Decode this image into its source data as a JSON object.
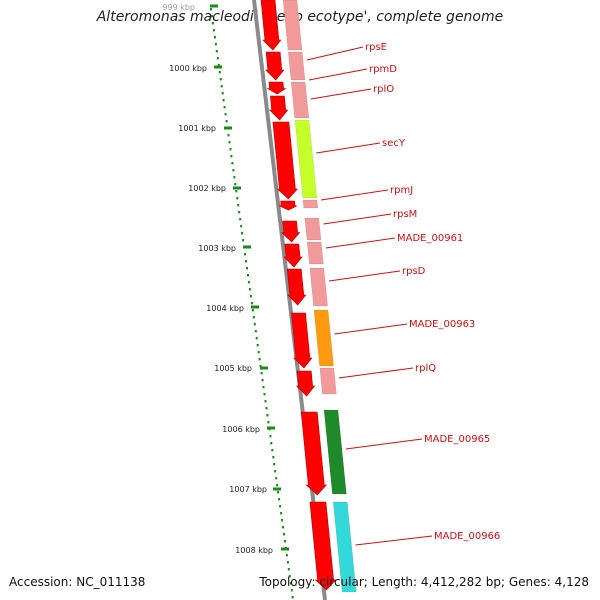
{
  "title": "Alteromonas macleodii 'Deep ecotype', complete genome",
  "accession": "Accession: NC_011138",
  "summary": "Topology: circular; Length: 4,412,282 bp; Genes: 4,128",
  "colors": {
    "backbone": "#8a8a8a",
    "tick": "#1a8a1a",
    "forward_gene": "#ff0000",
    "label": "#cc1111",
    "cog_default": "#f29a9a",
    "cog_lime": "#c4ff2a",
    "cog_orange": "#ff9a10",
    "cog_green": "#1f8a2a",
    "cog_cyan": "#33d8d8"
  },
  "ruler": [
    {
      "label": "999 kbp",
      "faded": true
    },
    {
      "label": "1000 kbp"
    },
    {
      "label": "1001 kbp"
    },
    {
      "label": "1002 kbp"
    },
    {
      "label": "1003 kbp"
    },
    {
      "label": "1004 kbp"
    },
    {
      "label": "1005 kbp"
    },
    {
      "label": "1006 kbp"
    },
    {
      "label": "1007 kbp"
    },
    {
      "label": "1008 kbp"
    }
  ],
  "genes": [
    {
      "name": "rpsE",
      "cog": "pink"
    },
    {
      "name": "rpmD",
      "cog": "pink"
    },
    {
      "name": "rplO",
      "cog": "pink"
    },
    {
      "name": "secY",
      "cog": "lime"
    },
    {
      "name": "rpmJ",
      "cog": "pink"
    },
    {
      "name": "rpsM",
      "cog": "pink"
    },
    {
      "name": "MADE_00961",
      "cog": "pink"
    },
    {
      "name": "rpsD",
      "cog": "pink"
    },
    {
      "name": "MADE_00963",
      "cog": "orange"
    },
    {
      "name": "rplQ",
      "cog": "pink"
    },
    {
      "name": "MADE_00965",
      "cog": "green"
    },
    {
      "name": "MADE_00966",
      "cog": "cyan"
    }
  ]
}
